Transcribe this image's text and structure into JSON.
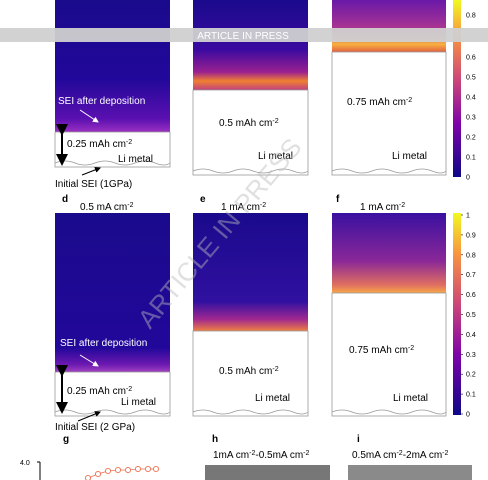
{
  "banner": "ARTICLE IN PRESS",
  "watermark": "ARTICLE IN PRESS",
  "top_row": {
    "panel_1": {
      "annotation": "SEI after deposition",
      "capacity": [
        [
          "0.25 mAh cm",
          "-2"
        ]
      ],
      "electrode": "Li metal",
      "initial_sei": "Initial SEI (1GPa)"
    },
    "panel_2": {
      "capacity": [
        [
          "0.5 mAh cm",
          "-2"
        ]
      ],
      "electrode": "Li metal"
    },
    "panel_3": {
      "capacity": [
        [
          "0.75 mAh cm",
          "-2"
        ]
      ],
      "electrode": "Li metal"
    },
    "colorbar_ticks": [
      "0.8",
      "0.6",
      "0.5",
      "0.4",
      "0.3",
      "0.2",
      "0.1",
      "0"
    ]
  },
  "bottom_row": {
    "panel_d": {
      "letter": "d",
      "current": [
        [
          "0.5 mA cm",
          "-2"
        ]
      ],
      "annotation": "SEI after deposition",
      "capacity": [
        [
          "0.25 mAh cm",
          "-2"
        ]
      ],
      "electrode": "Li metal",
      "initial_sei": "Initial SEI (2 GPa)"
    },
    "panel_e": {
      "letter": "e",
      "current": [
        [
          "1 mA cm",
          "-2"
        ]
      ],
      "capacity": [
        [
          "0.5 mAh cm",
          "-2"
        ]
      ],
      "electrode": "Li metal"
    },
    "panel_f": {
      "letter": "f",
      "current": [
        [
          "1 mA cm",
          "-2"
        ]
      ],
      "capacity": [
        [
          "0.75 mAh cm",
          "-2"
        ]
      ],
      "electrode": "Li metal"
    },
    "colorbar_ticks": [
      "1",
      "0.9",
      "0.8",
      "0.7",
      "0.6",
      "0.5",
      "0.4",
      "0.3",
      "0.2",
      "0.1",
      "0"
    ]
  },
  "panel_g": {
    "letter": "g",
    "y_tick": "4.0"
  },
  "panel_h": {
    "letter": "h",
    "title": [
      [
        "1mA cm",
        "-2"
      ],
      [
        "-0.5mA cm",
        "-2"
      ]
    ]
  },
  "panel_i": {
    "letter": "i",
    "title": [
      [
        "0.5mA cm",
        "-2"
      ],
      [
        "-2mA cm",
        "-2"
      ]
    ]
  }
}
